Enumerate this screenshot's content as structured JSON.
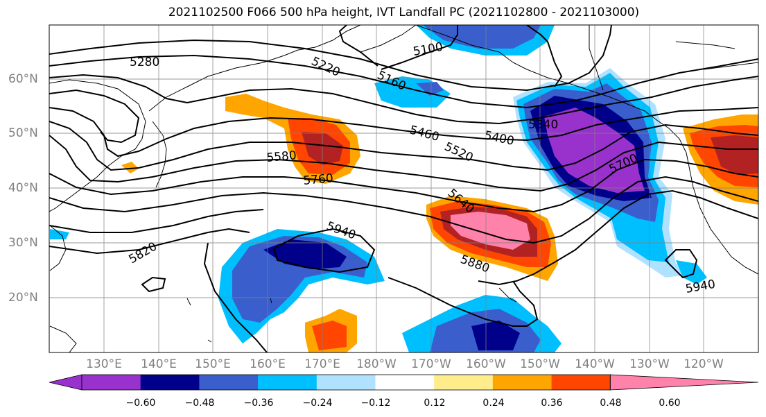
{
  "title": "2021102500 F066 500 hPa height, IVT Landfall PC (2021102800 - 2021103000)",
  "lat_labels": [
    "60°N",
    "50°N",
    "40°N",
    "30°N",
    "20°N"
  ],
  "lon_labels": [
    "130°E",
    "140°E",
    "150°E",
    "160°E",
    "170°E",
    "180°W",
    "170°W",
    "160°W",
    "150°W",
    "140°W",
    "130°W",
    "120°W"
  ],
  "contour_labels": [
    "5280",
    "5100",
    "5220",
    "5160",
    "5460",
    "5520",
    "5400",
    "5340",
    "5580",
    "5760",
    "5700",
    "5640",
    "5940",
    "5820",
    "5880",
    "5940"
  ],
  "colorbar": {
    "ticks": [
      "−0.60",
      "−0.48",
      "−0.36",
      "−0.24",
      "−0.12",
      "0.12",
      "0.24",
      "0.36",
      "0.48",
      "0.60"
    ],
    "colors": [
      "#9932cc",
      "#00008b",
      "#3a5fcd",
      "#00bfff",
      "#b0e2ff",
      "#ffffff",
      "#ffec8b",
      "#ffa500",
      "#ff4500",
      "#b22222",
      "#ff82ab"
    ]
  },
  "colors": {
    "purple": "#9932cc",
    "navy": "#00008b",
    "blue": "#3a5fcd",
    "sky": "#00bfff",
    "lightblue": "#b0e2ff",
    "yellow": "#ffec8b",
    "orange": "#ffa500",
    "redorange": "#ff4500",
    "firebrick": "#b22222",
    "pink": "#ff82ab"
  }
}
